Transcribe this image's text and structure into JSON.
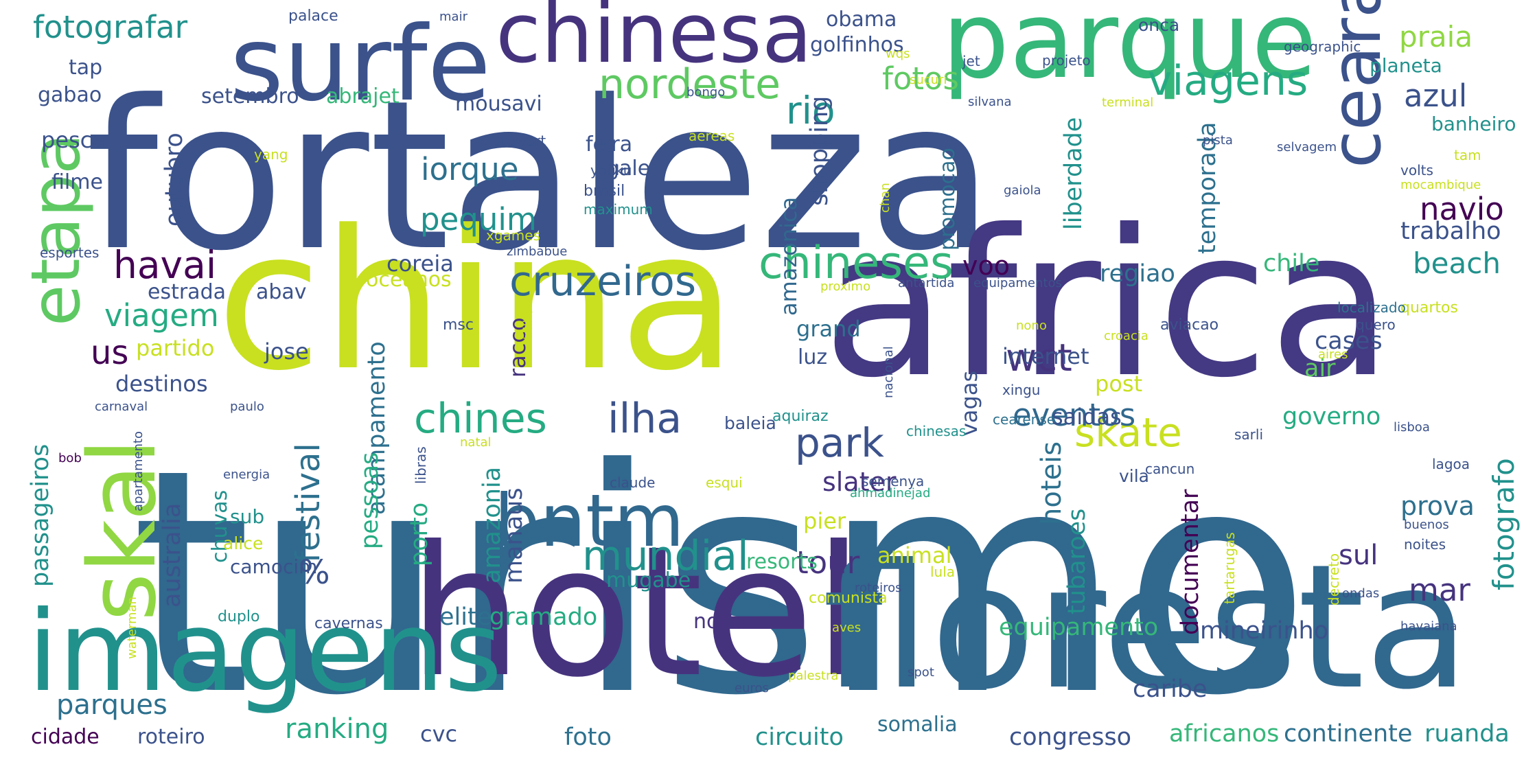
{
  "colors": {
    "background": "#ffffff",
    "palette": [
      "#440154",
      "#46337e",
      "#3b528b",
      "#31688e",
      "#2d708e",
      "#21918c",
      "#25ab82",
      "#35b779",
      "#5ec962",
      "#90d743",
      "#c8e020",
      "#fde725"
    ]
  },
  "words": [
    {
      "text": "turismo",
      "color": "#31688e"
    },
    {
      "text": "fortaleza",
      "color": "#3b528b"
    },
    {
      "text": "africa",
      "color": "#443983"
    },
    {
      "text": "china",
      "color": "#c8e020"
    },
    {
      "text": "hotel",
      "color": "#46337e"
    },
    {
      "text": "floresta",
      "color": "#31688e"
    },
    {
      "text": "imagens",
      "color": "#21918c"
    },
    {
      "text": "parque",
      "color": "#35b779"
    },
    {
      "text": "surfe",
      "color": "#3b528b"
    },
    {
      "text": "chinesa",
      "color": "#46337e"
    },
    {
      "text": "skal",
      "color": "#90d743"
    },
    {
      "text": "etapa",
      "color": "#5ec962"
    },
    {
      "text": "ceara",
      "color": "#3b528b"
    },
    {
      "text": "bntm",
      "color": "#31688e"
    },
    {
      "text": "chineses",
      "color": "#35b779"
    },
    {
      "text": "cruzeiros",
      "color": "#31688e"
    },
    {
      "text": "viagens",
      "color": "#25ab82"
    },
    {
      "text": "nordeste",
      "color": "#5ec962"
    },
    {
      "text": "havai",
      "color": "#440154"
    },
    {
      "text": "mundial",
      "color": "#21918c"
    },
    {
      "text": "chines",
      "color": "#25ab82"
    },
    {
      "text": "ilha",
      "color": "#3b528b"
    },
    {
      "text": "park",
      "color": "#3b528b"
    },
    {
      "text": "wct",
      "color": "#46337e"
    },
    {
      "text": "skate",
      "color": "#c8e020"
    },
    {
      "text": "fotografo",
      "color": "#21918c"
    },
    {
      "text": "fotografar",
      "color": "#21918c"
    },
    {
      "text": "viagem",
      "color": "#25ab82"
    },
    {
      "text": "praia",
      "color": "#90d743"
    },
    {
      "text": "azul",
      "color": "#3b528b"
    },
    {
      "text": "rio",
      "color": "#21918c"
    },
    {
      "text": "fotos",
      "color": "#5ec962"
    },
    {
      "text": "iorque",
      "color": "#2d708e"
    },
    {
      "text": "pequim",
      "color": "#21918c"
    },
    {
      "text": "navio",
      "color": "#440154"
    },
    {
      "text": "beach",
      "color": "#21918c"
    },
    {
      "text": "festival",
      "color": "#2d708e"
    },
    {
      "text": "ranking",
      "color": "#25ab82"
    },
    {
      "text": "tour",
      "color": "#46337e"
    },
    {
      "text": "mar",
      "color": "#46337e"
    },
    {
      "text": "eventos",
      "color": "#31688e"
    },
    {
      "text": "hoteis",
      "color": "#2d708e"
    },
    {
      "text": "parques",
      "color": "#2d708e"
    },
    {
      "text": "us",
      "color": "#440154"
    },
    {
      "text": "%",
      "color": "#3b528b"
    },
    {
      "text": "sul",
      "color": "#46337e"
    },
    {
      "text": "slater",
      "color": "#46337e"
    },
    {
      "text": "prova",
      "color": "#2d708e"
    },
    {
      "text": "voo",
      "color": "#440154"
    },
    {
      "text": "regiao",
      "color": "#2d708e"
    },
    {
      "text": "chile",
      "color": "#35b779"
    },
    {
      "text": "coreia",
      "color": "#3b528b"
    },
    {
      "text": "governo",
      "color": "#25ab82"
    },
    {
      "text": "cases",
      "color": "#3b528b"
    },
    {
      "text": "air",
      "color": "#5ec962"
    },
    {
      "text": "trabalho",
      "color": "#3b528b"
    },
    {
      "text": "liberdade",
      "color": "#21918c"
    },
    {
      "text": "temporada",
      "color": "#2d708e"
    },
    {
      "text": "documentar",
      "color": "#440154"
    },
    {
      "text": "tubaroes",
      "color": "#21918c"
    },
    {
      "text": "equipamento",
      "color": "#35b779"
    },
    {
      "text": "mineirinho",
      "color": "#3b528b"
    },
    {
      "text": "acampamento",
      "color": "#2d708e"
    },
    {
      "text": "amazonia",
      "color": "#21918c"
    },
    {
      "text": "manaus",
      "color": "#3b528b"
    },
    {
      "text": "porto",
      "color": "#25ab82"
    },
    {
      "text": "australia",
      "color": "#3b528b"
    },
    {
      "text": "passageiros",
      "color": "#21918c"
    },
    {
      "text": "pessoas",
      "color": "#25ab82"
    },
    {
      "text": "chuvas",
      "color": "#21918c"
    },
    {
      "text": "outubro",
      "color": "#3b528b"
    },
    {
      "text": "shopping",
      "color": "#3b528b"
    },
    {
      "text": "amazonica",
      "color": "#31688e"
    },
    {
      "text": "promocao",
      "color": "#2d708e"
    },
    {
      "text": "vagas",
      "color": "#3b528b"
    },
    {
      "text": "racco",
      "color": "#46337e"
    },
    {
      "text": "feira",
      "color": "#3b528b"
    },
    {
      "text": "gale",
      "color": "#3b528b"
    },
    {
      "text": "abrajet",
      "color": "#35b779"
    },
    {
      "text": "setembro",
      "color": "#3b528b"
    },
    {
      "text": "mousavi",
      "color": "#3b528b"
    },
    {
      "text": "gabao",
      "color": "#3b528b"
    },
    {
      "text": "tap",
      "color": "#3b528b"
    },
    {
      "text": "pesca",
      "color": "#3b528b"
    },
    {
      "text": "filme",
      "color": "#3b528b"
    },
    {
      "text": "estrada",
      "color": "#3b528b"
    },
    {
      "text": "abav",
      "color": "#3b528b"
    },
    {
      "text": "oceanos",
      "color": "#c8e020"
    },
    {
      "text": "partido",
      "color": "#c8e020"
    },
    {
      "text": "jose",
      "color": "#3b528b"
    },
    {
      "text": "destinos",
      "color": "#3b528b"
    },
    {
      "text": "carnaval",
      "color": "#3b528b"
    },
    {
      "text": "paulo",
      "color": "#3b528b"
    },
    {
      "text": "obama",
      "color": "#3b528b"
    },
    {
      "text": "golfinhos",
      "color": "#3b528b"
    },
    {
      "text": "onca",
      "color": "#3b528b"
    },
    {
      "text": "planeta",
      "color": "#21918c"
    },
    {
      "text": "banheiro",
      "color": "#21918c"
    },
    {
      "text": "tam",
      "color": "#c8e020"
    },
    {
      "text": "volts",
      "color": "#3b528b"
    },
    {
      "text": "mocambique",
      "color": "#c8e020"
    },
    {
      "text": "quartos",
      "color": "#c8e020"
    },
    {
      "text": "localizado",
      "color": "#2d708e"
    },
    {
      "text": "grand",
      "color": "#2d708e"
    },
    {
      "text": "resorts",
      "color": "#35b779"
    },
    {
      "text": "luz",
      "color": "#3b528b"
    },
    {
      "text": "baleia",
      "color": "#3b528b"
    },
    {
      "text": "aquiraz",
      "color": "#21918c"
    },
    {
      "text": "internet",
      "color": "#3b528b"
    },
    {
      "text": "post",
      "color": "#c8e020"
    },
    {
      "text": "xingu",
      "color": "#3b528b"
    },
    {
      "text": "saidas",
      "color": "#3b528b"
    },
    {
      "text": "cearense",
      "color": "#2d708e"
    },
    {
      "text": "animal",
      "color": "#c8e020"
    },
    {
      "text": "pier",
      "color": "#c8e020"
    },
    {
      "text": "mugabe",
      "color": "#21918c"
    },
    {
      "text": "gramado",
      "color": "#25ab82"
    },
    {
      "text": "elite",
      "color": "#2d708e"
    },
    {
      "text": "norte",
      "color": "#46337e"
    },
    {
      "text": "foto",
      "color": "#2d708e"
    },
    {
      "text": "circuito",
      "color": "#21918c"
    },
    {
      "text": "somalia",
      "color": "#2d708e"
    },
    {
      "text": "congresso",
      "color": "#3b528b"
    },
    {
      "text": "africanos",
      "color": "#35b779"
    },
    {
      "text": "continente",
      "color": "#2d708e"
    },
    {
      "text": "ruanda",
      "color": "#21918c"
    },
    {
      "text": "caribe",
      "color": "#3b528b"
    },
    {
      "text": "cvc",
      "color": "#3b528b"
    },
    {
      "text": "roteiro",
      "color": "#3b528b"
    },
    {
      "text": "cidade",
      "color": "#440154"
    },
    {
      "text": "camocim",
      "color": "#3b528b"
    },
    {
      "text": "sub",
      "color": "#21918c"
    },
    {
      "text": "alice",
      "color": "#c8e020"
    },
    {
      "text": "duplo",
      "color": "#21918c"
    },
    {
      "text": "cavernas",
      "color": "#3b528b"
    },
    {
      "text": "comunista",
      "color": "#c8e020"
    },
    {
      "text": "roteiros",
      "color": "#3b528b"
    },
    {
      "text": "lula",
      "color": "#c8e020"
    },
    {
      "text": "vila",
      "color": "#3b528b"
    },
    {
      "text": "semenya",
      "color": "#3b528b"
    },
    {
      "text": "esqui",
      "color": "#c8e020"
    },
    {
      "text": "claude",
      "color": "#3b528b"
    },
    {
      "text": "ahmadinejad",
      "color": "#25ab82"
    },
    {
      "text": "tartarugas",
      "color": "#c8e020"
    },
    {
      "text": "decreto",
      "color": "#c8e020"
    },
    {
      "text": "buenos",
      "color": "#3b528b"
    },
    {
      "text": "noites",
      "color": "#3b528b"
    },
    {
      "text": "ondas",
      "color": "#3b528b"
    },
    {
      "text": "havaiana",
      "color": "#3b528b"
    },
    {
      "text": "aves",
      "color": "#c8e020"
    },
    {
      "text": "spot",
      "color": "#3b528b"
    },
    {
      "text": "euros",
      "color": "#3b528b"
    },
    {
      "text": "palestra",
      "color": "#c8e020"
    },
    {
      "text": "waterman",
      "color": "#c8e020"
    },
    {
      "text": "energia",
      "color": "#3b528b"
    },
    {
      "text": "apartamento",
      "color": "#3b528b"
    },
    {
      "text": "bob",
      "color": "#440154"
    },
    {
      "text": "libras",
      "color": "#3b528b"
    },
    {
      "text": "natal",
      "color": "#c8e020"
    },
    {
      "text": "chinesas",
      "color": "#21918c"
    },
    {
      "text": "sarli",
      "color": "#3b528b"
    },
    {
      "text": "lisboa",
      "color": "#3b528b"
    },
    {
      "text": "lagoa",
      "color": "#3b528b"
    },
    {
      "text": "cancun",
      "color": "#3b528b"
    },
    {
      "text": "nacional",
      "color": "#3b528b"
    },
    {
      "text": "croacia",
      "color": "#c8e020"
    },
    {
      "text": "nono",
      "color": "#c8e020"
    },
    {
      "text": "aviacao",
      "color": "#3b528b"
    },
    {
      "text": "aires",
      "color": "#c8e020"
    },
    {
      "text": "quero",
      "color": "#3b528b"
    },
    {
      "text": "antartida",
      "color": "#3b528b"
    },
    {
      "text": "equipamentos",
      "color": "#3b528b"
    },
    {
      "text": "proximo",
      "color": "#c8e020"
    },
    {
      "text": "msc",
      "color": "#3b528b"
    },
    {
      "text": "trilha",
      "color": "#c8e020"
    },
    {
      "text": "esportes",
      "color": "#3b528b"
    },
    {
      "text": "zimbabue",
      "color": "#3b528b"
    },
    {
      "text": "xgames",
      "color": "#c8e020"
    },
    {
      "text": "maximum",
      "color": "#21918c"
    },
    {
      "text": "brasil",
      "color": "#3b528b"
    },
    {
      "text": "youku",
      "color": "#3b528b"
    },
    {
      "text": "yang",
      "color": "#c8e020"
    },
    {
      "text": "stewart",
      "color": "#3b528b"
    },
    {
      "text": "aereas",
      "color": "#c8e020"
    },
    {
      "text": "chan",
      "color": "#c8e020"
    },
    {
      "text": "gaiola",
      "color": "#3b528b"
    },
    {
      "text": "selvagem",
      "color": "#3b528b"
    },
    {
      "text": "pista",
      "color": "#3b528b"
    },
    {
      "text": "terminal",
      "color": "#c8e020"
    },
    {
      "text": "silvana",
      "color": "#3b528b"
    },
    {
      "text": "sucuri",
      "color": "#c8e020"
    },
    {
      "text": "jet",
      "color": "#3b528b"
    },
    {
      "text": "wqs",
      "color": "#c8e020"
    },
    {
      "text": "projeto",
      "color": "#3b528b"
    },
    {
      "text": "geographic",
      "color": "#3b528b"
    },
    {
      "text": "palace",
      "color": "#3b528b"
    },
    {
      "text": "mair",
      "color": "#3b528b"
    },
    {
      "text": "bongo",
      "color": "#3b528b"
    }
  ]
}
